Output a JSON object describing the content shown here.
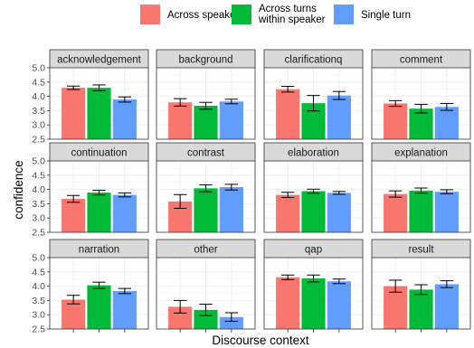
{
  "chart_data": {
    "type": "bar",
    "facet_layout": "4 columns x 3 rows",
    "xlabel": "Discourse context",
    "ylabel": "confidence",
    "ylim": [
      2.5,
      5.0
    ],
    "yticks": [
      "2.5",
      "3.0",
      "3.5",
      "4.0",
      "4.5",
      "5.0"
    ],
    "grid": true,
    "legend_position": "top",
    "legend": [
      {
        "label_lines": [
          "Across speakers"
        ],
        "color": "#F8766D"
      },
      {
        "label_lines": [
          "Across turns",
          "within speaker"
        ],
        "color": "#00BA38"
      },
      {
        "label_lines": [
          "Single turn"
        ],
        "color": "#619CFF"
      }
    ],
    "series_order": [
      "Across speakers",
      "Across turns within speaker",
      "Single turn"
    ],
    "facets": [
      {
        "name": "acknowledgement",
        "values": [
          4.3,
          4.3,
          3.89
        ],
        "errors": [
          0.06,
          0.1,
          0.09
        ]
      },
      {
        "name": "background",
        "values": [
          3.79,
          3.67,
          3.82
        ],
        "errors": [
          0.13,
          0.12,
          0.08
        ]
      },
      {
        "name": "clarificationq",
        "values": [
          4.25,
          3.76,
          4.03
        ],
        "errors": [
          0.1,
          0.27,
          0.14
        ]
      },
      {
        "name": "comment",
        "values": [
          3.75,
          3.57,
          3.63
        ],
        "errors": [
          0.1,
          0.15,
          0.12
        ]
      },
      {
        "name": "continuation",
        "values": [
          3.67,
          3.89,
          3.81
        ],
        "errors": [
          0.12,
          0.08,
          0.07
        ]
      },
      {
        "name": "contrast",
        "values": [
          3.58,
          4.04,
          4.08
        ],
        "errors": [
          0.24,
          0.12,
          0.1
        ]
      },
      {
        "name": "elaboration",
        "values": [
          3.81,
          3.94,
          3.88
        ],
        "errors": [
          0.09,
          0.07,
          0.05
        ]
      },
      {
        "name": "explanation",
        "values": [
          3.84,
          3.96,
          3.92
        ],
        "errors": [
          0.11,
          0.09,
          0.07
        ]
      },
      {
        "name": "narration",
        "values": [
          3.53,
          4.03,
          3.83
        ],
        "errors": [
          0.15,
          0.11,
          0.09
        ]
      },
      {
        "name": "other",
        "values": [
          3.28,
          3.17,
          2.92
        ],
        "errors": [
          0.22,
          0.2,
          0.15
        ]
      },
      {
        "name": "qap",
        "values": [
          4.31,
          4.27,
          4.17
        ],
        "errors": [
          0.08,
          0.12,
          0.08
        ]
      },
      {
        "name": "result",
        "values": [
          4.0,
          3.88,
          4.07
        ],
        "errors": [
          0.21,
          0.17,
          0.12
        ]
      }
    ]
  }
}
